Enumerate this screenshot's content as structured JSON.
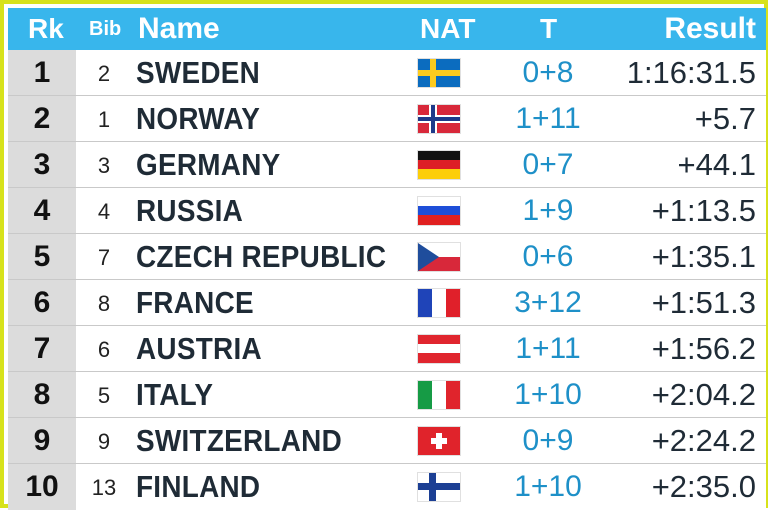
{
  "header": {
    "rk": "Rk",
    "bib": "Bib",
    "name": "Name",
    "nat": "NAT",
    "t": "T",
    "result": "Result"
  },
  "colors": {
    "header_bg": "#38b6ec",
    "frame": "#d7e21b",
    "rank_bg": "#dcdcdc",
    "t_text": "#1e90c8"
  },
  "rows": [
    {
      "rk": "1",
      "bib": "2",
      "name": "SWEDEN",
      "flag": "swe-flag-icon",
      "t": "0+8",
      "result": "1:16:31.5"
    },
    {
      "rk": "2",
      "bib": "1",
      "name": "NORWAY",
      "flag": "nor-flag-icon",
      "t": "1+11",
      "result": "+5.7"
    },
    {
      "rk": "3",
      "bib": "3",
      "name": "GERMANY",
      "flag": "ger-flag-icon",
      "t": "0+7",
      "result": "+44.1"
    },
    {
      "rk": "4",
      "bib": "4",
      "name": "RUSSIA",
      "flag": "rus-flag-icon",
      "t": "1+9",
      "result": "+1:13.5"
    },
    {
      "rk": "5",
      "bib": "7",
      "name": "CZECH REPUBLIC",
      "flag": "cze-flag-icon",
      "t": "0+6",
      "result": "+1:35.1"
    },
    {
      "rk": "6",
      "bib": "8",
      "name": "FRANCE",
      "flag": "fra-flag-icon",
      "t": "3+12",
      "result": "+1:51.3"
    },
    {
      "rk": "7",
      "bib": "6",
      "name": "AUSTRIA",
      "flag": "aut-flag-icon",
      "t": "1+11",
      "result": "+1:56.2"
    },
    {
      "rk": "8",
      "bib": "5",
      "name": "ITALY",
      "flag": "ita-flag-icon",
      "t": "1+10",
      "result": "+2:04.2"
    },
    {
      "rk": "9",
      "bib": "9",
      "name": "SWITZERLAND",
      "flag": "sui-flag-icon",
      "t": "0+9",
      "result": "+2:24.2"
    },
    {
      "rk": "10",
      "bib": "13",
      "name": "FINLAND",
      "flag": "fin-flag-icon",
      "t": "1+10",
      "result": "+2:35.0"
    }
  ]
}
